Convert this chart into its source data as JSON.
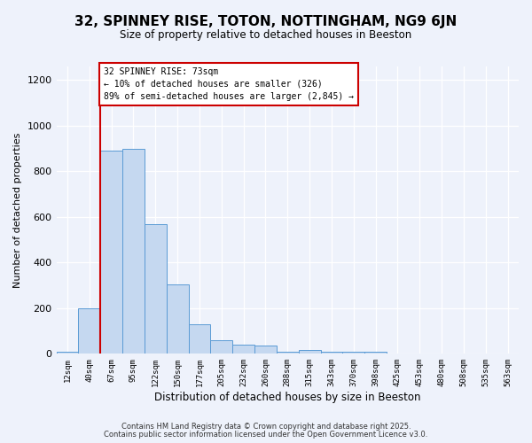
{
  "title": "32, SPINNEY RISE, TOTON, NOTTINGHAM, NG9 6JN",
  "subtitle": "Size of property relative to detached houses in Beeston",
  "xlabel": "Distribution of detached houses by size in Beeston",
  "ylabel": "Number of detached properties",
  "bin_labels": [
    "12sqm",
    "40sqm",
    "67sqm",
    "95sqm",
    "122sqm",
    "150sqm",
    "177sqm",
    "205sqm",
    "232sqm",
    "260sqm",
    "288sqm",
    "315sqm",
    "343sqm",
    "370sqm",
    "398sqm",
    "425sqm",
    "453sqm",
    "480sqm",
    "508sqm",
    "535sqm",
    "563sqm"
  ],
  "bar_values": [
    10,
    200,
    890,
    900,
    570,
    305,
    130,
    60,
    40,
    35,
    10,
    15,
    10,
    10,
    10,
    0,
    0,
    0,
    0,
    0,
    0
  ],
  "bar_color": "#c5d8f0",
  "bar_edge_color": "#5b9bd5",
  "vline_x_idx": 2,
  "vline_color": "#cc0000",
  "annotation_title": "32 SPINNEY RISE: 73sqm",
  "annotation_line1": "← 10% of detached houses are smaller (326)",
  "annotation_line2": "89% of semi-detached houses are larger (2,845) →",
  "annotation_box_color": "#ffffff",
  "annotation_box_edge": "#cc0000",
  "background_color": "#eef2fb",
  "ylim": [
    0,
    1260
  ],
  "yticks": [
    0,
    200,
    400,
    600,
    800,
    1000,
    1200
  ],
  "footer1": "Contains HM Land Registry data © Crown copyright and database right 2025.",
  "footer2": "Contains public sector information licensed under the Open Government Licence v3.0."
}
